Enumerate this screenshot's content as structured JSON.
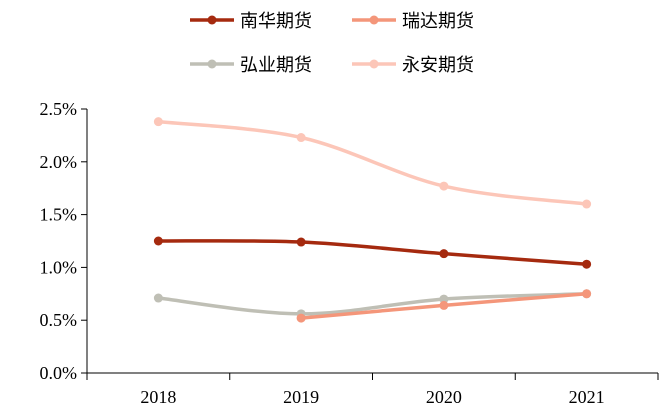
{
  "chart_data": {
    "type": "line",
    "title": "",
    "xlabel": "",
    "ylabel": "",
    "categories": [
      "2018",
      "2019",
      "2020",
      "2021"
    ],
    "ylim": [
      0,
      0.025
    ],
    "y_ticks": [
      0,
      0.005,
      0.01,
      0.015,
      0.02,
      0.025
    ],
    "y_tick_labels": [
      "0.0%",
      "0.5%",
      "1.0%",
      "1.5%",
      "2.0%",
      "2.5%"
    ],
    "grid": false,
    "legend_position": "top",
    "series": [
      {
        "name": "南华期货",
        "color": "#a52a0f",
        "values": [
          0.0125,
          0.0124,
          0.0113,
          0.0103
        ]
      },
      {
        "name": "瑞达期货",
        "color": "#f4967a",
        "values": [
          null,
          0.0052,
          0.0064,
          0.0075
        ]
      },
      {
        "name": "弘业期货",
        "color": "#bfbfb5",
        "values": [
          0.0071,
          0.0056,
          0.007,
          0.0075
        ]
      },
      {
        "name": "永安期货",
        "color": "#fcc6b8",
        "values": [
          0.0238,
          0.0223,
          0.0177,
          0.016
        ]
      }
    ]
  }
}
